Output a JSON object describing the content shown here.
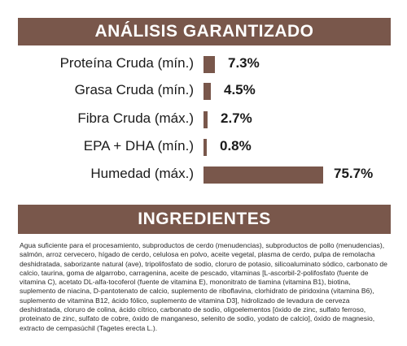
{
  "analysis": {
    "title": "ANÁLISIS GARANTIZADO",
    "rows": [
      {
        "label": "Proteína Cruda (mín.)",
        "value": "7.3%",
        "percent": 7.3
      },
      {
        "label": "Grasa Cruda (mín.)",
        "value": "4.5%",
        "percent": 4.5
      },
      {
        "label": "Fibra Cruda (máx.)",
        "value": "2.7%",
        "percent": 2.7
      },
      {
        "label": "EPA + DHA (mín.)",
        "value": "0.8%",
        "percent": 0.8
      },
      {
        "label": "Humedad (máx.)",
        "value": "75.7%",
        "percent": 75.7
      }
    ]
  },
  "ingredients": {
    "title": "INGREDIENTES",
    "text": "Agua suficiente para el procesamiento, subproductos de cerdo (menudencias), subproductos de pollo (menudencias), salmón, arroz cervecero, hígado de cerdo, celulosa en polvo, aceite vegetal, plasma de cerdo, pulpa de remolacha deshidratada, saborizante natural (ave), tripolifosfato de sodio, cloruro de potasio, silicoaluminato sódico, carbonato de calcio, taurina, goma de algarrobo, carragenina, aceite de pescado, vitaminas [L-ascorbil-2-polifosfato (fuente de vitamina C), acetato DL-alfa-tocoferol (fuente de vitamina E), mononitrato de tiamina (vitamina B1), biotina, suplemento de niacina, D-pantotenato de calcio, suplemento de riboflavina, clorhidrato de piridoxina (vitamina B6), suplemento de vitamina B12, ácido fólico, suplemento de vitamina D3], hidrolizado de levadura de cerveza deshidratada, cloruro de colina, ácido cítrico, carbonato de sodio, oligoelementos [óxido de zinc, sulfato ferroso, proteinato de zinc, sulfato de cobre, óxido de manganeso, selenito de sodio, yodato de calcio], óxido de magnesio, extracto de cempasúchil (Tagetes erecta L.)."
  },
  "colors": {
    "accent": "#79574b"
  }
}
